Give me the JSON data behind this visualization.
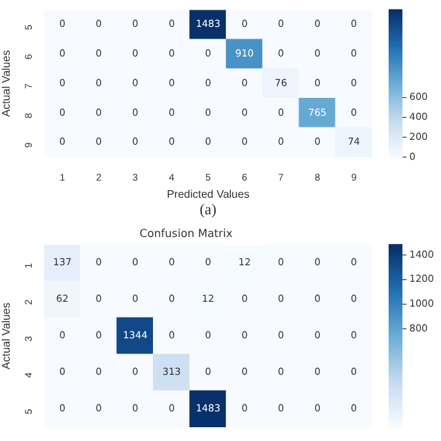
{
  "chart_data": [
    {
      "type": "heatmap",
      "xlabel": "Predicted Values",
      "ylabel": "Actual Values",
      "categories": [
        "1",
        "2",
        "3",
        "4",
        "5",
        "6",
        "7",
        "8",
        "9"
      ],
      "y_categories": [
        "5",
        "6",
        "7",
        "8",
        "9"
      ],
      "cells": [
        [
          0,
          0,
          0,
          0,
          1483,
          0,
          0,
          0,
          0
        ],
        [
          0,
          0,
          0,
          0,
          0,
          910,
          0,
          0,
          0
        ],
        [
          0,
          0,
          0,
          0,
          0,
          0,
          76,
          0,
          0
        ],
        [
          0,
          0,
          0,
          0,
          0,
          0,
          0,
          765,
          0
        ],
        [
          0,
          0,
          0,
          0,
          0,
          0,
          0,
          0,
          74
        ]
      ],
      "clim": [
        0,
        1483
      ],
      "cticks": [
        0,
        200,
        400,
        600
      ],
      "data_labels": true,
      "annotations": [
        "(a)"
      ]
    },
    {
      "type": "heatmap",
      "title": "Confusion Matrix",
      "ylabel": "Actual Values",
      "categories": [
        null,
        null,
        null,
        null,
        null,
        null,
        null,
        null,
        null
      ],
      "y_categories": [
        "1",
        "2",
        "3",
        "4",
        "5"
      ],
      "cells": [
        [
          137,
          0,
          0,
          0,
          0,
          12,
          0,
          0,
          0
        ],
        [
          62,
          0,
          0,
          0,
          12,
          0,
          0,
          0,
          0
        ],
        [
          0,
          0,
          1344,
          0,
          0,
          0,
          0,
          0,
          0
        ],
        [
          0,
          0,
          0,
          313,
          0,
          0,
          0,
          0,
          0
        ],
        [
          0,
          0,
          0,
          0,
          1483,
          0,
          0,
          0,
          0
        ]
      ],
      "clim": [
        0,
        1483
      ],
      "cticks": [
        800,
        1000,
        1200,
        1400
      ],
      "data_labels": true,
      "tick_labels": "y"
    }
  ]
}
